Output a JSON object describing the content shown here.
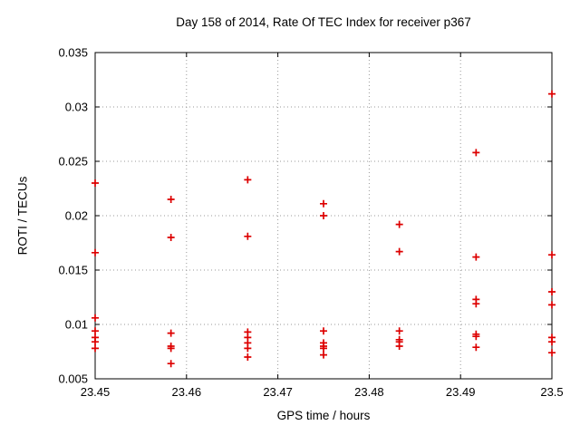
{
  "chart_data": {
    "type": "scatter",
    "title": "Day 158 of 2014, Rate Of TEC Index for receiver p367",
    "xlabel": "GPS time / hours",
    "ylabel": "ROTI / TECUs",
    "xlim": [
      23.45,
      23.5
    ],
    "ylim": [
      0.005,
      0.035
    ],
    "x_tick_values": [
      23.45,
      23.46,
      23.47,
      23.48,
      23.49,
      23.5
    ],
    "x_tick_labels": [
      "23.45",
      "23.46",
      "23.47",
      "23.48",
      "23.49",
      "23.5"
    ],
    "y_tick_values": [
      0.005,
      0.01,
      0.015,
      0.02,
      0.025,
      0.03,
      0.035
    ],
    "y_tick_labels": [
      "0.005",
      "0.01",
      "0.015",
      "0.02",
      "0.025",
      "0.03",
      "0.035"
    ],
    "grid": true,
    "legend_position": "none",
    "marker": {
      "shape": "plus",
      "color": "#dd0000",
      "size": 9
    },
    "axis_color": "#000000",
    "grid_color": "#9a9a9a",
    "background_color": "#ffffff",
    "series": [
      {
        "name": "ROTI",
        "groups": [
          {
            "x": 23.45,
            "y": [
              0.023,
              0.0166,
              0.0106,
              0.0094,
              0.0088,
              0.0084,
              0.0078
            ]
          },
          {
            "x": 23.4583,
            "y": [
              0.0215,
              0.018,
              0.0092,
              0.008,
              0.0078,
              0.0064
            ]
          },
          {
            "x": 23.4667,
            "y": [
              0.0233,
              0.0181,
              0.0093,
              0.0088,
              0.0083,
              0.0078,
              0.007
            ]
          },
          {
            "x": 23.475,
            "y": [
              0.0211,
              0.02,
              0.0094,
              0.0083,
              0.008,
              0.0078,
              0.0072
            ]
          },
          {
            "x": 23.4833,
            "y": [
              0.0192,
              0.0167,
              0.0094,
              0.0086,
              0.0084,
              0.008
            ]
          },
          {
            "x": 23.4917,
            "y": [
              0.0258,
              0.0162,
              0.0123,
              0.0119,
              0.0091,
              0.0089,
              0.0079
            ]
          },
          {
            "x": 23.5,
            "y": [
              0.0312,
              0.0164,
              0.013,
              0.0118,
              0.0088,
              0.0084,
              0.0074
            ]
          }
        ]
      }
    ]
  }
}
